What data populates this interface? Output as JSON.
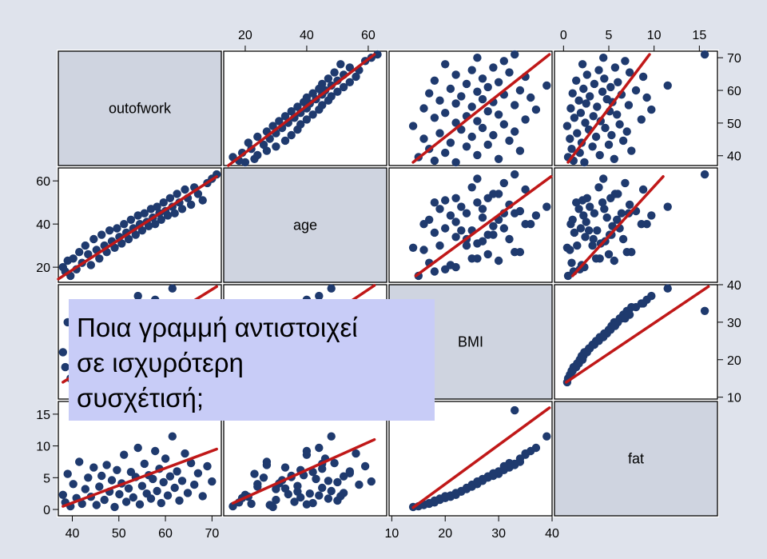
{
  "chart_data": {
    "type": "scatter-matrix",
    "variables": [
      "outofwork",
      "age",
      "BMI",
      "fat"
    ],
    "ranges": {
      "outofwork": [
        37,
        72
      ],
      "age": [
        13,
        66
      ],
      "BMI": [
        9.5,
        40
      ],
      "fat": [
        -1,
        17
      ]
    },
    "ticks": {
      "outofwork": [
        40,
        50,
        60,
        70
      ],
      "age": [
        20,
        40,
        60
      ],
      "BMI": [
        10,
        20,
        30,
        40
      ],
      "fat": [
        0,
        5,
        10,
        15
      ]
    },
    "tick_labels": {
      "top": {
        "age": [
          "20",
          "40",
          "60"
        ],
        "fat": [
          "0",
          "5",
          "10",
          "15"
        ]
      },
      "right": {
        "outofwork": [
          "70",
          "60",
          "50",
          "40"
        ],
        "BMI": [
          "40",
          "30",
          "20",
          "10"
        ]
      },
      "left": {
        "age": [
          "60",
          "40",
          "20"
        ],
        "fat": [
          "15",
          "10",
          "5",
          "0"
        ]
      },
      "bottom": {
        "outofwork": [
          "40",
          "50",
          "60",
          "70"
        ],
        "BMI": [
          "10",
          "20",
          "30",
          "40"
        ]
      }
    },
    "grid": false,
    "colors": {
      "points": "#1f3a6e",
      "fit_line": "#c01818",
      "diagonal_fill": "#cfd4e0",
      "frame": "#000000"
    },
    "samples": {
      "outofwork": [
        38.0,
        38.5,
        39.0,
        39.6,
        40.2,
        40.9,
        41.5,
        42.1,
        42.8,
        43.4,
        44.0,
        44.6,
        45.2,
        45.8,
        46.3,
        46.9,
        47.4,
        48.0,
        48.5,
        49.1,
        49.6,
        50.1,
        50.6,
        51.1,
        51.6,
        52.1,
        52.6,
        53.1,
        53.6,
        54.1,
        54.5,
        55.0,
        55.5,
        56.0,
        56.4,
        56.9,
        57.3,
        57.8,
        58.2,
        58.7,
        59.1,
        59.6,
        60.0,
        60.5,
        61.0,
        61.5,
        62.0,
        62.5,
        63.0,
        63.6,
        64.2,
        64.8,
        65.5,
        66.2,
        67.0,
        68.0,
        69.0,
        70.0,
        71.0
      ],
      "age": [
        20,
        18,
        23,
        16,
        24,
        19,
        27,
        22,
        30,
        26,
        21,
        33,
        28,
        24,
        35,
        30,
        27,
        37,
        32,
        29,
        38,
        34,
        31,
        40,
        36,
        33,
        42,
        38,
        35,
        44,
        40,
        37,
        45,
        41,
        39,
        47,
        43,
        40,
        48,
        45,
        42,
        50,
        46,
        44,
        52,
        48,
        45,
        54,
        50,
        47,
        56,
        52,
        49,
        57,
        54,
        51,
        59,
        61,
        63
      ],
      "BMI": [
        22,
        18,
        30,
        15,
        26,
        20,
        34,
        17,
        24,
        28,
        21,
        32,
        16,
        25,
        29,
        19,
        33,
        23,
        27,
        14,
        31,
        22,
        26,
        35,
        18,
        24,
        30,
        20,
        28,
        37,
        16,
        25,
        33,
        22,
        29,
        19,
        27,
        36,
        23,
        31,
        17,
        26,
        34,
        21,
        28,
        39,
        24,
        30,
        18,
        27,
        35,
        22,
        32,
        25,
        29,
        20,
        31,
        26,
        33
      ],
      "fat": [
        2.3,
        1.1,
        5.6,
        0.5,
        4.0,
        1.8,
        7.5,
        0.9,
        3.2,
        5.0,
        2.0,
        6.6,
        0.7,
        3.6,
        5.3,
        1.5,
        7.0,
        2.8,
        4.6,
        0.4,
        6.2,
        2.4,
        4.1,
        8.6,
        1.2,
        3.3,
        5.9,
        1.9,
        5.1,
        9.7,
        0.8,
        3.7,
        7.2,
        2.5,
        5.4,
        1.7,
        4.8,
        9.2,
        2.9,
        6.4,
        1.0,
        4.3,
        8.0,
        2.2,
        5.2,
        11.5,
        3.4,
        6.0,
        1.4,
        4.5,
        8.8,
        2.6,
        7.3,
        3.9,
        5.7,
        2.1,
        6.8,
        4.4,
        15.6
      ]
    },
    "fit_lines": [
      {
        "x": "outofwork",
        "y": "age",
        "from": [
          37,
          14.5
        ],
        "to": [
          71,
          62
        ]
      },
      {
        "x": "outofwork",
        "y": "BMI",
        "from": [
          38,
          14
        ],
        "to": [
          71,
          39.5
        ]
      },
      {
        "x": "outofwork",
        "y": "fat",
        "from": [
          38,
          0.5
        ],
        "to": [
          71,
          9.5
        ]
      },
      {
        "x": "age",
        "y": "BMI",
        "from": [
          16,
          14.5
        ],
        "to": [
          62,
          39.8
        ]
      },
      {
        "x": "age",
        "y": "fat",
        "from": [
          16,
          1.0
        ],
        "to": [
          62,
          11.0
        ]
      },
      {
        "x": "BMI",
        "y": "fat",
        "from": [
          14,
          0.3
        ],
        "to": [
          39.5,
          16.0
        ]
      }
    ]
  },
  "overlay": {
    "question_lines": [
      "Ποια γραμμή αντιστοιχεί",
      "σε ισχυρότερη",
      "συσχέτισή;"
    ],
    "background": "#c8ccf7"
  }
}
